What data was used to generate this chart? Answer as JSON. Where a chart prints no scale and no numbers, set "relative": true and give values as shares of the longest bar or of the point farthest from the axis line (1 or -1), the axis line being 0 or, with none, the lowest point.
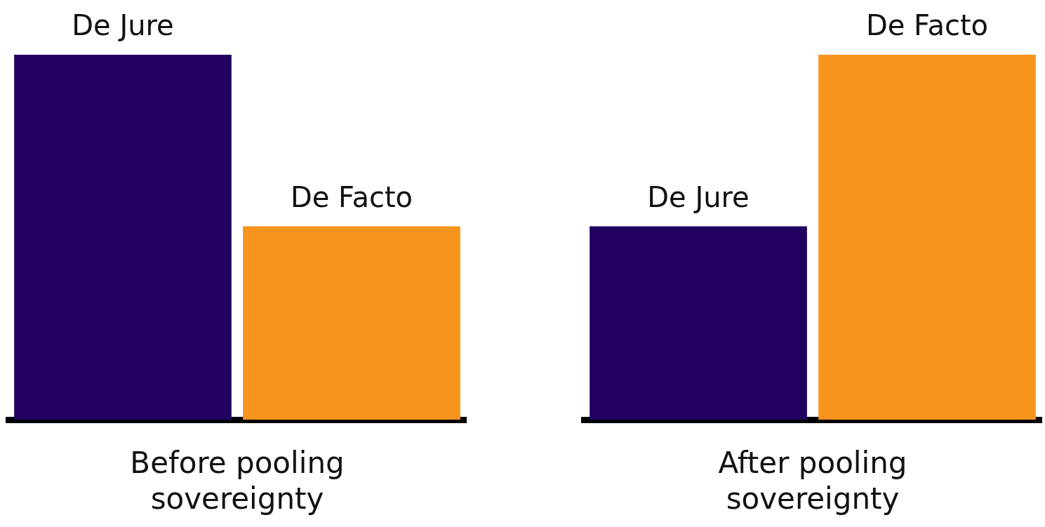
{
  "chart_data": [
    {
      "type": "bar",
      "relative": true,
      "categories": [
        "De Jure",
        "De Facto"
      ],
      "values": [
        1,
        0.53
      ],
      "colors": [
        "#22005f",
        "#f7941d"
      ],
      "xlabel": "Before pooling sovereignty",
      "legend": false,
      "grid": false
    },
    {
      "type": "bar",
      "relative": true,
      "categories": [
        "De Jure",
        "De Facto"
      ],
      "values": [
        0.53,
        1
      ],
      "colors": [
        "#22005f",
        "#f7941d"
      ],
      "xlabel": "After pooling sovereignty",
      "legend": false,
      "grid": false
    }
  ]
}
